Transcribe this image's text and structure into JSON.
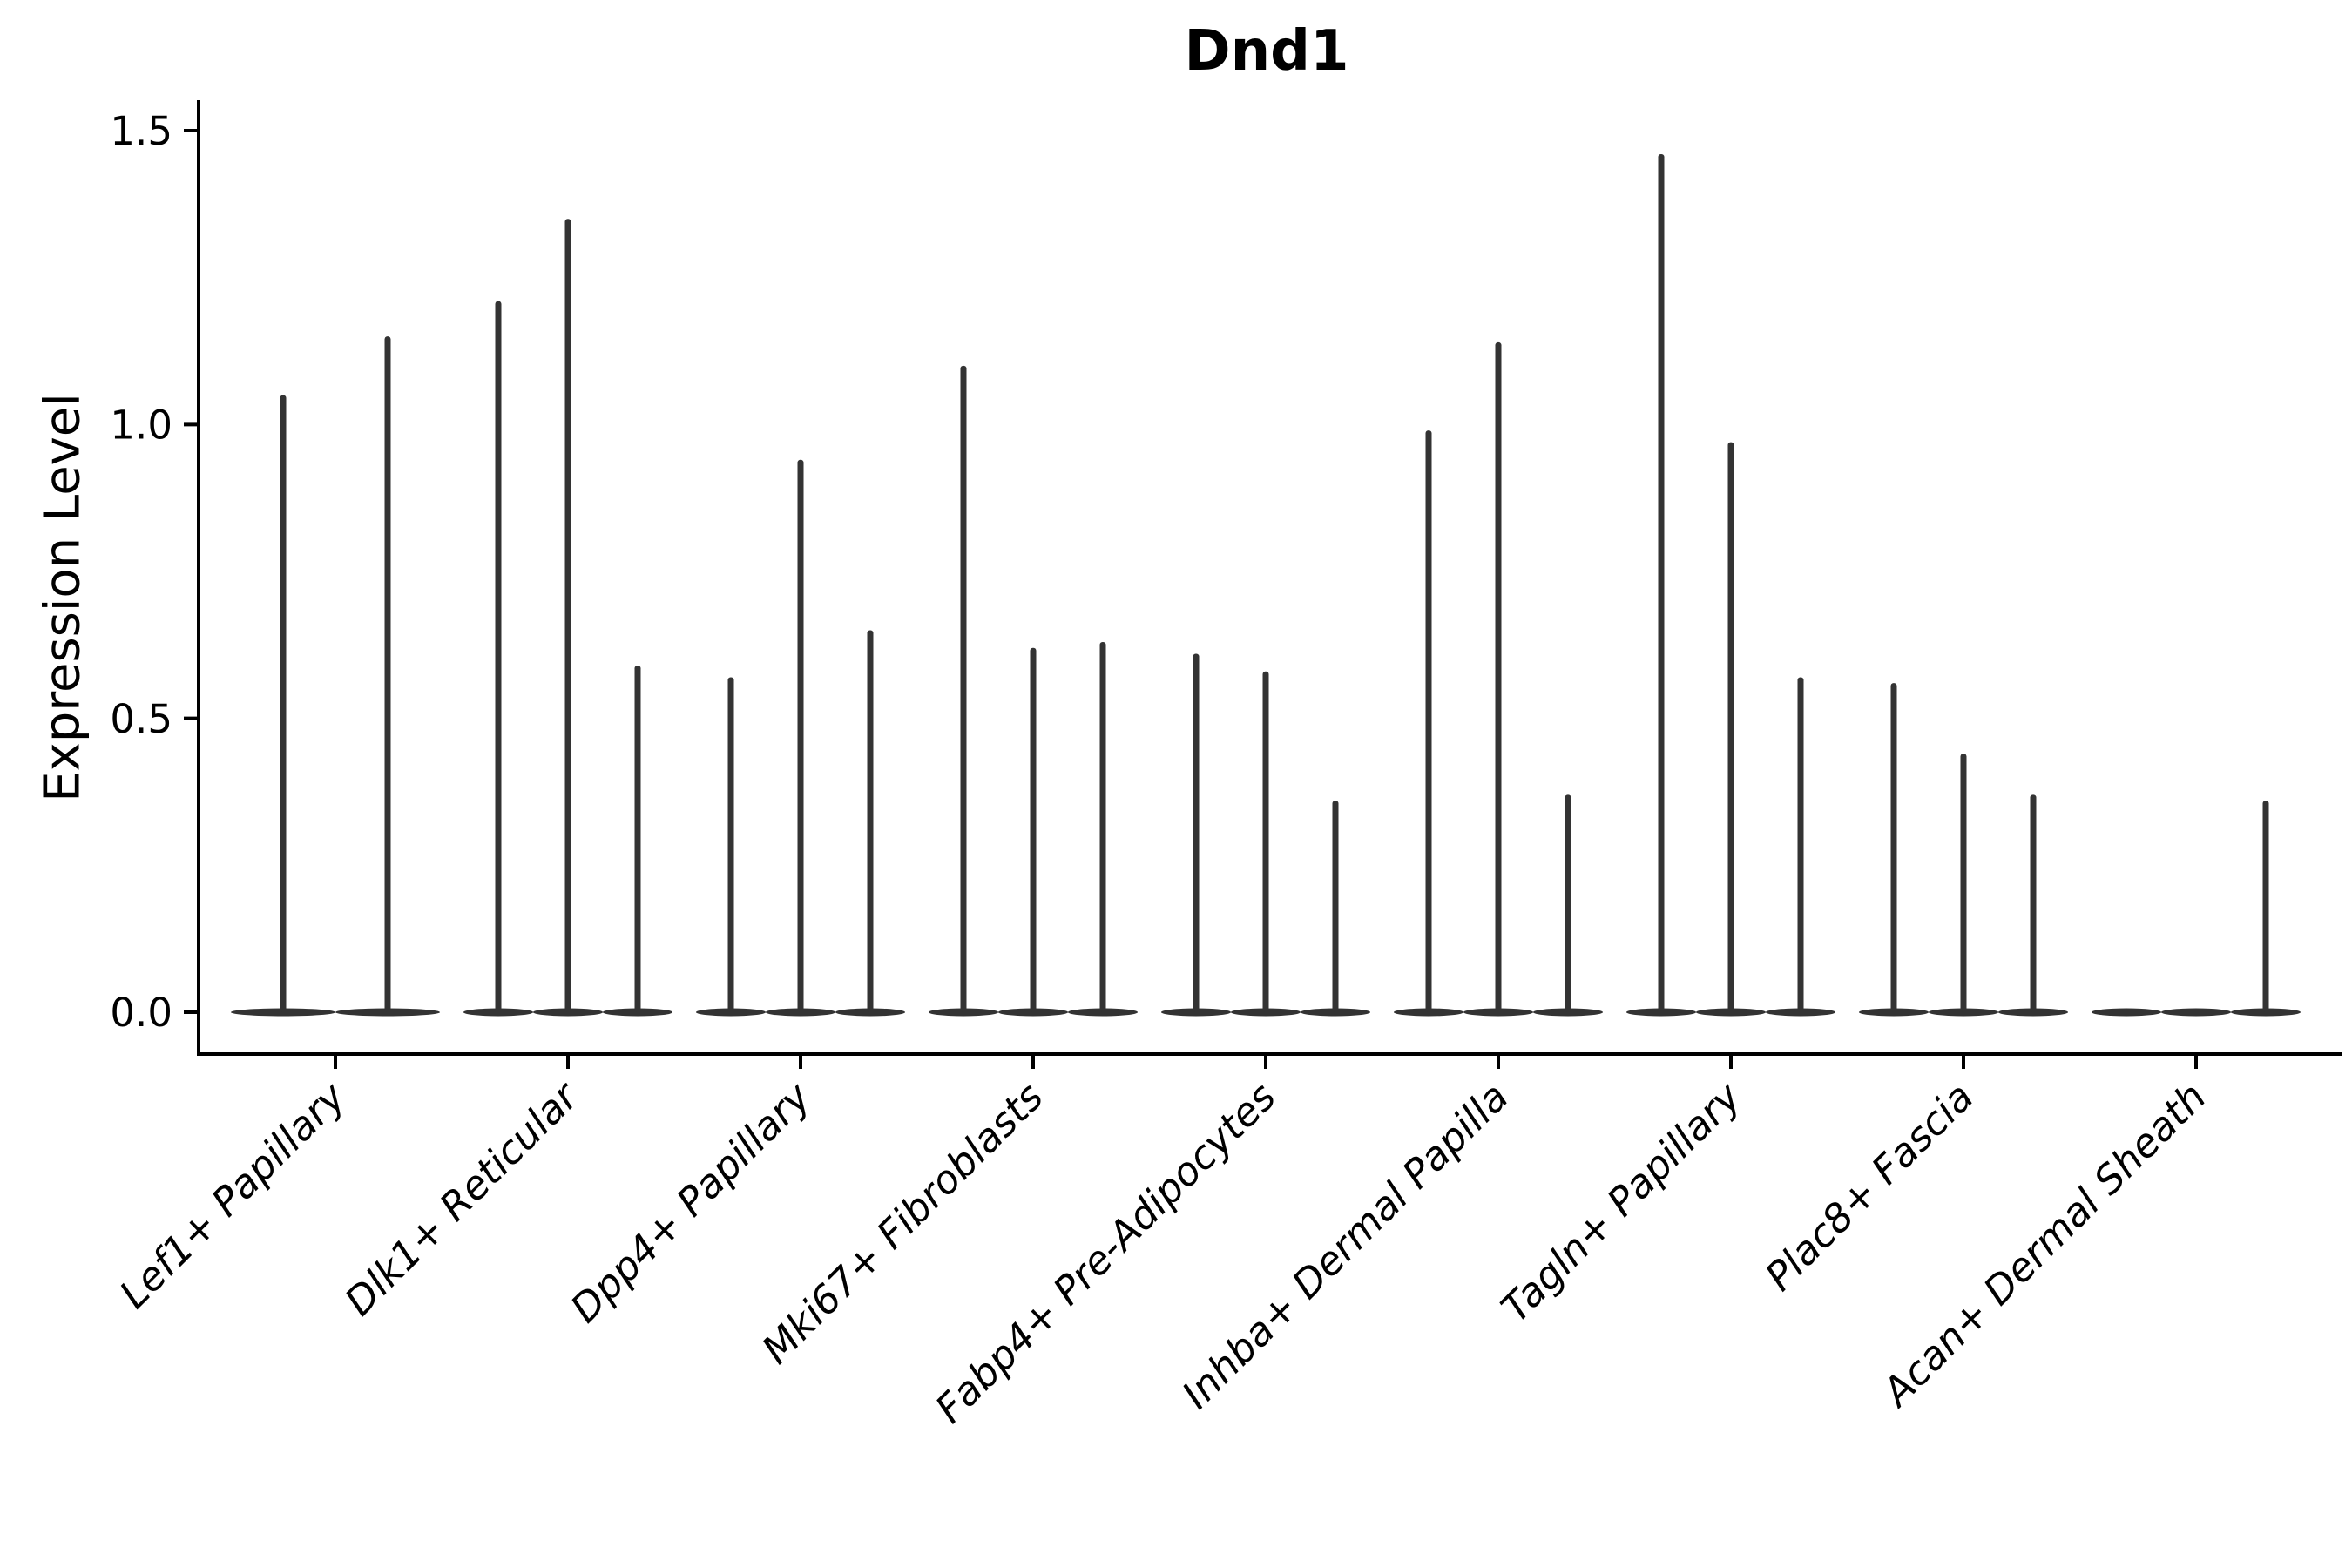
{
  "chart_data": {
    "type": "violin",
    "title": "Dnd1",
    "ylabel": "Expression Level",
    "xlabel": "",
    "ylim": [
      0,
      1.5
    ],
    "yticks": [
      "0.0",
      "0.5",
      "1.0",
      "1.5"
    ],
    "grid": false,
    "legend": null,
    "categories": [
      "Lef1+ Papillary",
      "Dlk1+ Reticular",
      "Dpp4+ Papillary",
      "Mki67+ Fibroblasts",
      "Fabp4+ Pre-Adipocytes",
      "Inhba+ Dermal Papilla",
      "Tagln+ Papillary",
      "Plac8+ Fascia",
      "Acan+ Dermal Sheath"
    ],
    "violins_per_category": [
      [
        1.05,
        1.15
      ],
      [
        1.21,
        1.35,
        0.59
      ],
      [
        0.57,
        0.94,
        0.65
      ],
      [
        1.1,
        0.62,
        0.63
      ],
      [
        0.61,
        0.58,
        0.36
      ],
      [
        0.99,
        1.14,
        0.37
      ],
      [
        1.46,
        0.97,
        0.57
      ],
      [
        0.56,
        0.44,
        0.37
      ],
      [
        0.0,
        0.0,
        0.36
      ]
    ],
    "violin_description": "flat base at 0 with single thin spike to max expression",
    "colors": {
      "violin": "#333333",
      "axis": "#000000",
      "text": "#000000",
      "background": "#ffffff"
    }
  }
}
